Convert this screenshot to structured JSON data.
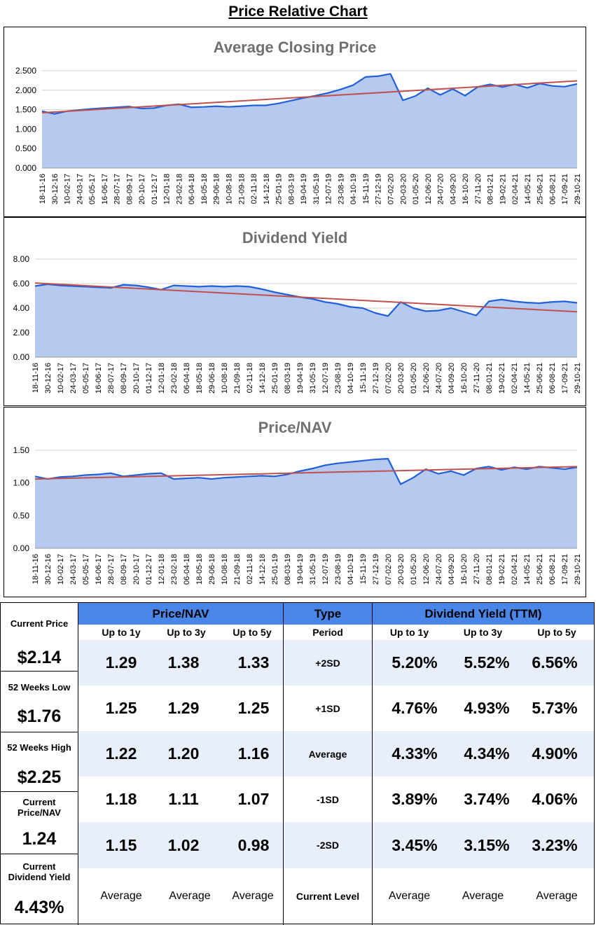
{
  "page_title": "Price Relative Chart",
  "colors": {
    "area_fill": "#b6c9ef",
    "line": "#2160d8",
    "trend": "#c0504d",
    "header": "#4a86e8",
    "band": "#e8effb"
  },
  "x_tick_labels": [
    "18-11-16",
    "30-12-16",
    "10-02-17",
    "24-03-17",
    "05-05-17",
    "16-06-17",
    "28-07-17",
    "08-09-17",
    "20-10-17",
    "01-12-17",
    "12-01-18",
    "23-02-18",
    "06-04-18",
    "18-05-18",
    "29-06-18",
    "10-08-18",
    "21-09-18",
    "02-11-18",
    "14-12-18",
    "25-01-19",
    "08-03-19",
    "19-04-19",
    "31-05-19",
    "12-07-19",
    "23-08-19",
    "04-10-19",
    "15-11-19",
    "27-12-19",
    "07-02-20",
    "20-03-20",
    "01-05-20",
    "12-06-20",
    "24-07-20",
    "04-09-20",
    "16-10-20",
    "27-11-20",
    "08-01-21",
    "19-02-21",
    "02-04-21",
    "14-05-21",
    "25-06-21",
    "06-08-21",
    "17-09-21",
    "29-10-21"
  ],
  "chart_data": [
    {
      "type": "area",
      "title": "Average Closing Price",
      "xlabel": "",
      "ylabel": "",
      "ylim": [
        0,
        2.5
      ],
      "y_ticks": [
        "0.000",
        "0.500",
        "1.000",
        "1.500",
        "2.000",
        "2.500"
      ],
      "series": [
        {
          "name": "Average Closing Price",
          "values": [
            1.46,
            1.39,
            1.46,
            1.49,
            1.52,
            1.54,
            1.56,
            1.58,
            1.53,
            1.54,
            1.61,
            1.64,
            1.56,
            1.57,
            1.59,
            1.57,
            1.59,
            1.61,
            1.61,
            1.66,
            1.73,
            1.8,
            1.86,
            1.93,
            2.02,
            2.13,
            2.34,
            2.36,
            2.42,
            1.74,
            1.85,
            2.05,
            1.88,
            2.03,
            1.86,
            2.08,
            2.15,
            2.08,
            2.15,
            2.06,
            2.17,
            2.11,
            2.09,
            2.16
          ]
        }
      ],
      "trend": [
        1.42,
        2.24
      ]
    },
    {
      "type": "area",
      "title": "Dividend Yield",
      "xlabel": "",
      "ylabel": "",
      "ylim": [
        0,
        8
      ],
      "y_ticks": [
        "0.00",
        "2.00",
        "4.00",
        "6.00",
        "8.00"
      ],
      "series": [
        {
          "name": "Dividend Yield",
          "values": [
            5.8,
            5.95,
            5.85,
            5.8,
            5.75,
            5.7,
            5.65,
            5.9,
            5.85,
            5.7,
            5.5,
            5.85,
            5.8,
            5.75,
            5.8,
            5.75,
            5.8,
            5.75,
            5.55,
            5.3,
            5.1,
            4.9,
            4.75,
            4.5,
            4.35,
            4.1,
            4.0,
            3.6,
            3.35,
            4.5,
            4.0,
            3.75,
            3.8,
            4.0,
            3.7,
            3.4,
            4.55,
            4.7,
            4.55,
            4.45,
            4.4,
            4.5,
            4.55,
            4.43
          ]
        }
      ],
      "trend": [
        6.05,
        3.7
      ]
    },
    {
      "type": "area",
      "title": "Price/NAV",
      "xlabel": "",
      "ylabel": "",
      "ylim": [
        0,
        1.5
      ],
      "y_ticks": [
        "0.00",
        "0.50",
        "1.00",
        "1.50"
      ],
      "series": [
        {
          "name": "Price/NAV",
          "values": [
            1.1,
            1.06,
            1.09,
            1.1,
            1.12,
            1.13,
            1.15,
            1.1,
            1.12,
            1.14,
            1.15,
            1.06,
            1.07,
            1.08,
            1.06,
            1.08,
            1.09,
            1.1,
            1.11,
            1.1,
            1.13,
            1.18,
            1.22,
            1.27,
            1.3,
            1.32,
            1.34,
            1.36,
            1.37,
            0.98,
            1.08,
            1.21,
            1.14,
            1.18,
            1.12,
            1.22,
            1.25,
            1.2,
            1.24,
            1.21,
            1.25,
            1.23,
            1.21,
            1.24
          ]
        }
      ],
      "trend": [
        1.06,
        1.25
      ]
    }
  ],
  "left_panel": [
    {
      "label": "Current Price",
      "value": "$2.14"
    },
    {
      "label": "52 Weeks Low",
      "value": "$1.76"
    },
    {
      "label": "52 Weeks High",
      "value": "$2.25"
    },
    {
      "label": "Current Price/NAV",
      "value": "1.24"
    },
    {
      "label": "Current Dividend Yield",
      "value": "4.43%"
    }
  ],
  "table": {
    "price_nav_header": "Price/NAV",
    "type_header": "Type",
    "dy_header": "Dividend Yield (TTM)",
    "sub_headers": [
      "Up to 1y",
      "Up to 3y",
      "Up to 5y"
    ],
    "period_label": "Period",
    "rows": [
      {
        "type": "+2SD",
        "pnav": [
          "1.29",
          "1.38",
          "1.33"
        ],
        "dy": [
          "5.20%",
          "5.52%",
          "6.56%"
        ]
      },
      {
        "type": "+1SD",
        "pnav": [
          "1.25",
          "1.29",
          "1.25"
        ],
        "dy": [
          "4.76%",
          "4.93%",
          "5.73%"
        ]
      },
      {
        "type": "Average",
        "pnav": [
          "1.22",
          "1.20",
          "1.16"
        ],
        "dy": [
          "4.33%",
          "4.34%",
          "4.90%"
        ]
      },
      {
        "type": "-1SD",
        "pnav": [
          "1.18",
          "1.11",
          "1.07"
        ],
        "dy": [
          "3.89%",
          "3.74%",
          "4.06%"
        ]
      },
      {
        "type": "-2SD",
        "pnav": [
          "1.15",
          "1.02",
          "0.98"
        ],
        "dy": [
          "3.45%",
          "3.15%",
          "3.23%"
        ]
      }
    ],
    "footer": {
      "pnav": [
        "Average",
        "Average",
        "Average"
      ],
      "type": "Current Level",
      "dy": [
        "Average",
        "Average",
        "Average"
      ]
    }
  }
}
